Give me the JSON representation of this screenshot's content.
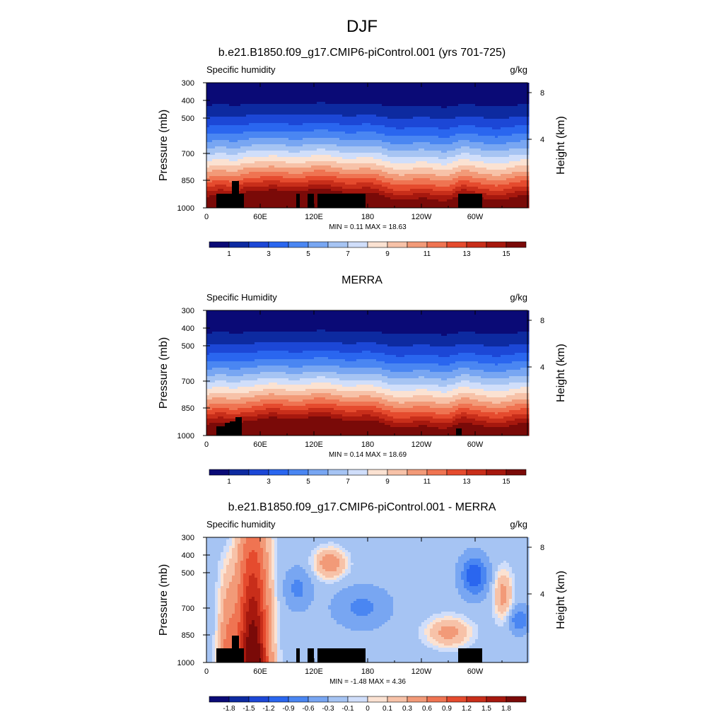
{
  "chart_data": [
    {
      "type": "heatmap",
      "figure_title": "DJF",
      "title": "b.e21.B1850.f09_g17.CMIP6-piControl.001 (yrs 701-725)",
      "field_label": "Specific humidity",
      "units": "g/kg",
      "xlabel": "",
      "ylabel": "Pressure (mb)",
      "y2label": "Height (km)",
      "x_ticks": [
        "0",
        "60E",
        "120E",
        "180",
        "120W",
        "60W"
      ],
      "y_ticks": [
        "300",
        "400",
        "500",
        "700",
        "850",
        "1000"
      ],
      "y2_ticks": [
        "8",
        "4"
      ],
      "ylim": [
        1000,
        300
      ],
      "min_max": "MIN =   0.11  MAX =  18.63",
      "min": 0.11,
      "max": 18.63,
      "colorbar_labels": [
        "1",
        "3",
        "5",
        "7",
        "9",
        "11",
        "13",
        "15"
      ],
      "colorbar_levels": 16
    },
    {
      "type": "heatmap",
      "title": "MERRA",
      "field_label": "Specific Humidity",
      "units": "g/kg",
      "xlabel": "",
      "ylabel": "Pressure (mb)",
      "y2label": "Height (km)",
      "x_ticks": [
        "0",
        "60E",
        "120E",
        "180",
        "120W",
        "60W"
      ],
      "y_ticks": [
        "300",
        "400",
        "500",
        "700",
        "850",
        "1000"
      ],
      "y2_ticks": [
        "8",
        "4"
      ],
      "ylim": [
        1000,
        300
      ],
      "min_max": "MIN =   0.14  MAX =  18.69",
      "min": 0.14,
      "max": 18.69,
      "colorbar_labels": [
        "1",
        "3",
        "5",
        "7",
        "9",
        "11",
        "13",
        "15"
      ],
      "colorbar_levels": 16
    },
    {
      "type": "heatmap",
      "title": "b.e21.B1850.f09_g17.CMIP6-piControl.001 - MERRA",
      "field_label": "Specific humidity",
      "units": "g/kg",
      "xlabel": "",
      "ylabel": "Pressure (mb)",
      "y2label": "Height (km)",
      "x_ticks": [
        "0",
        "60E",
        "120E",
        "180",
        "120W",
        "60W"
      ],
      "y_ticks": [
        "300",
        "400",
        "500",
        "700",
        "850",
        "1000"
      ],
      "y2_ticks": [
        "8",
        "4"
      ],
      "ylim": [
        1000,
        300
      ],
      "min_max": "MIN =  -1.48  MAX =   4.36",
      "min": -1.48,
      "max": 4.36,
      "colorbar_labels": [
        "-1.8",
        "-1.5",
        "-1.2",
        "-0.9",
        "-0.6",
        "-0.3",
        "-0.1",
        "0",
        "0.1",
        "0.3",
        "0.6",
        "0.9",
        "1.2",
        "1.5",
        "1.8"
      ],
      "colorbar_levels": 16
    }
  ],
  "colors": {
    "blue_red": [
      "#0a0a76",
      "#0d2aa0",
      "#1c47d6",
      "#2a66ef",
      "#4a86f2",
      "#78a6f2",
      "#a6c4f3",
      "#d0defa",
      "#fbe2d2",
      "#f7c2a8",
      "#f29a78",
      "#ef7452",
      "#e54b2e",
      "#c82e1a",
      "#a6180e",
      "#7a0a08"
    ],
    "terrain": "#000000"
  }
}
